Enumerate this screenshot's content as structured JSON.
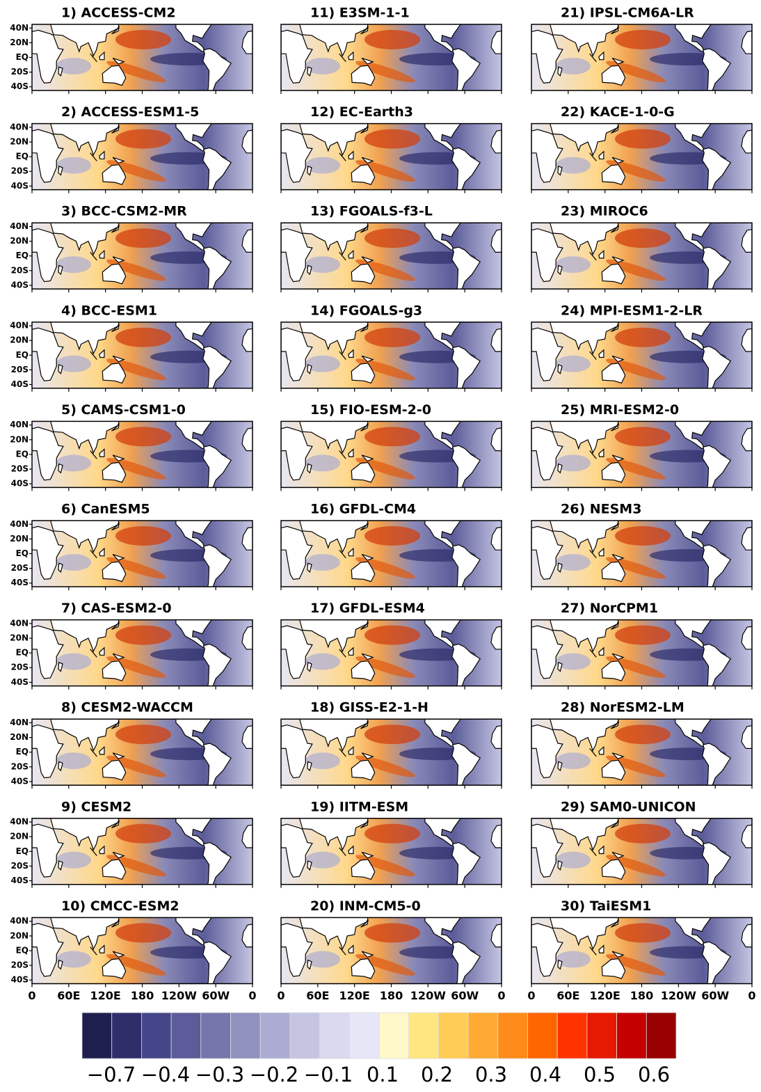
{
  "panels": [
    {
      "title": "1) ACCESS-CM2"
    },
    {
      "title": "2) ACCESS-ESM1-5"
    },
    {
      "title": "3) BCC-CSM2-MR"
    },
    {
      "title": "4) BCC-ESM1"
    },
    {
      "title": "5) CAMS-CSM1-0"
    },
    {
      "title": "6) CanESM5"
    },
    {
      "title": "7) CAS-ESM2-0"
    },
    {
      "title": "8) CESM2-WACCM"
    },
    {
      "title": "9) CESM2"
    },
    {
      "title": "10) CMCC-ESM2"
    },
    {
      "title": "11) E3SM-1-1"
    },
    {
      "title": "12) EC-Earth3"
    },
    {
      "title": "13) FGOALS-f3-L"
    },
    {
      "title": "14) FGOALS-g3"
    },
    {
      "title": "15) FIO-ESM-2-0"
    },
    {
      "title": "16) GFDL-CM4"
    },
    {
      "title": "17) GFDL-ESM4"
    },
    {
      "title": "18) GISS-E2-1-H"
    },
    {
      "title": "19) IITM-ESM"
    },
    {
      "title": "20) INM-CM5-0"
    },
    {
      "title": "21) IPSL-CM6A-LR"
    },
    {
      "title": "22) KACE-1-0-G"
    },
    {
      "title": "23) MIROC6"
    },
    {
      "title": "24) MPI-ESM1-2-LR"
    },
    {
      "title": "25) MRI-ESM2-0"
    },
    {
      "title": "26) NESM3"
    },
    {
      "title": "27) NorCPM1"
    },
    {
      "title": "28) NorESM2-LM"
    },
    {
      "title": "29) SAM0-UNICON"
    },
    {
      "title": "30) TaiESM1"
    }
  ],
  "lat_labels": [
    "40N",
    "20N",
    "EQ",
    "20S",
    "40S"
  ],
  "lon_labels": [
    "0",
    "60E",
    "120E",
    "180",
    "120W",
    "60W",
    "0"
  ],
  "colorbar": {
    "colors": [
      "#1f1f4f",
      "#2e2e6b",
      "#45458a",
      "#5c5c9a",
      "#7676ad",
      "#9191bf",
      "#acacd2",
      "#c5c5e2",
      "#d9d9ef",
      "#e6e6f7",
      "#fff8c8",
      "#ffe680",
      "#ffcc55",
      "#ffaa33",
      "#ff8c1a",
      "#ff6600",
      "#ff3300",
      "#e61a00",
      "#c40000",
      "#990000"
    ],
    "labels": [
      "−0.7",
      "−0.4",
      "−0.3",
      "−0.2",
      "−0.1",
      "0.1",
      "0.2",
      "0.3",
      "0.4",
      "0.5",
      "0.6"
    ]
  }
}
